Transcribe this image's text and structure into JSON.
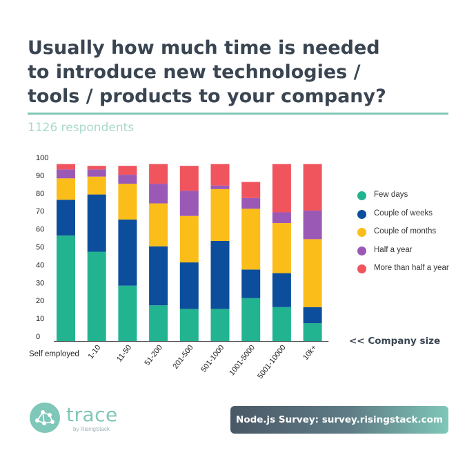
{
  "title_lines": [
    "Usually how much time is needed",
    "to introduce new technologies /",
    "tools / products to your company?"
  ],
  "subtitle": "1126 respondents",
  "company_size_label": "<< Company size",
  "logo": {
    "name": "trace",
    "sub": "by RisingStack",
    "icon": "trace-network-logo-icon"
  },
  "footer": {
    "text": "Node.js Survey: survey.risingstack.com"
  },
  "colors": {
    "Few days": "#22b391",
    "Couple of weeks": "#0c4e9c",
    "Couple of months": "#fbbd19",
    "Half a year": "#9b59b6",
    "More than half a year": "#f0555e"
  },
  "chart_data": {
    "type": "bar",
    "stacked": true,
    "title": "Usually how much time is needed to introduce new technologies / tools / products to your company?",
    "subtitle": "1126 respondents",
    "xlabel": "<< Company size",
    "ylabel": "",
    "ylim": [
      0,
      100
    ],
    "yticks": [
      0,
      10,
      20,
      30,
      40,
      50,
      60,
      70,
      80,
      90,
      100
    ],
    "grid": false,
    "legend": "right",
    "categories": [
      "Self employed",
      "1-10",
      "11-50",
      "51-200",
      "201-500",
      "501-1000",
      "1001-5000",
      "5001-10000",
      "10k+"
    ],
    "series": [
      {
        "name": "Few days",
        "values": [
          59,
          50,
          31,
          20,
          18,
          18,
          24,
          19,
          10
        ]
      },
      {
        "name": "Couple of weeks",
        "values": [
          20,
          32,
          37,
          33,
          26,
          38,
          16,
          19,
          9
        ]
      },
      {
        "name": "Couple of months",
        "values": [
          12,
          10,
          20,
          24,
          26,
          29,
          34,
          28,
          38
        ]
      },
      {
        "name": "Half a year",
        "values": [
          5,
          4,
          5,
          11,
          14,
          2,
          6,
          6,
          16
        ]
      },
      {
        "name": "More than half a year",
        "values": [
          3,
          2,
          5,
          11,
          14,
          12,
          9,
          27,
          26
        ]
      }
    ]
  }
}
